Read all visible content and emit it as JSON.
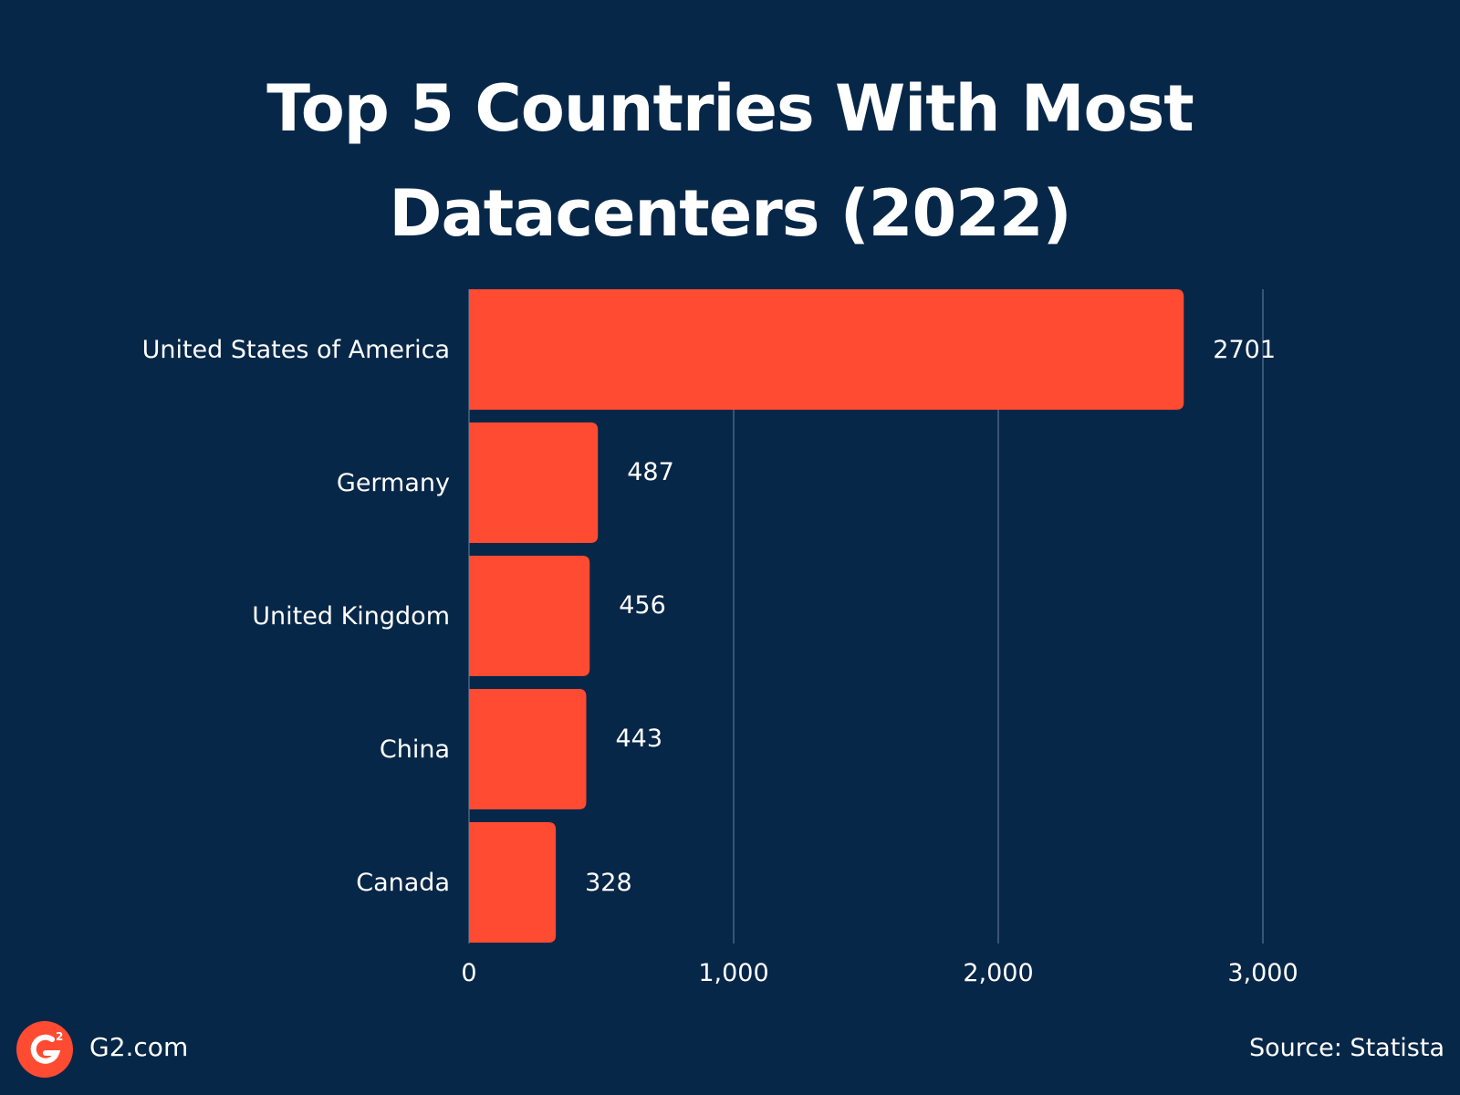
{
  "chart_data": {
    "type": "bar",
    "orientation": "horizontal",
    "title_lines": [
      "Top 5 Countries With Most",
      "Datacenters (2022)"
    ],
    "categories": [
      "United States of America",
      "Germany",
      "United Kingdom",
      "China",
      "Canada"
    ],
    "values": [
      2701,
      487,
      456,
      443,
      328
    ],
    "value_labels": [
      "2701",
      "487",
      "456",
      "443",
      "328"
    ],
    "xlim": [
      0,
      3000
    ],
    "x_ticks": [
      0,
      1000,
      2000,
      3000
    ],
    "x_tick_labels": [
      "0",
      "1,000",
      "2,000",
      "3,000"
    ],
    "xlabel": "",
    "ylabel": "",
    "grid": "vertical",
    "legend": "none",
    "bar_color": "#FF4B31",
    "grid_color": "#4A6582",
    "background_color": "#072748"
  },
  "footer": {
    "logo_icon": "g2-logo-icon",
    "logo_color": "#FF4B31",
    "site": "G2.com",
    "source": "Source: Statista"
  }
}
